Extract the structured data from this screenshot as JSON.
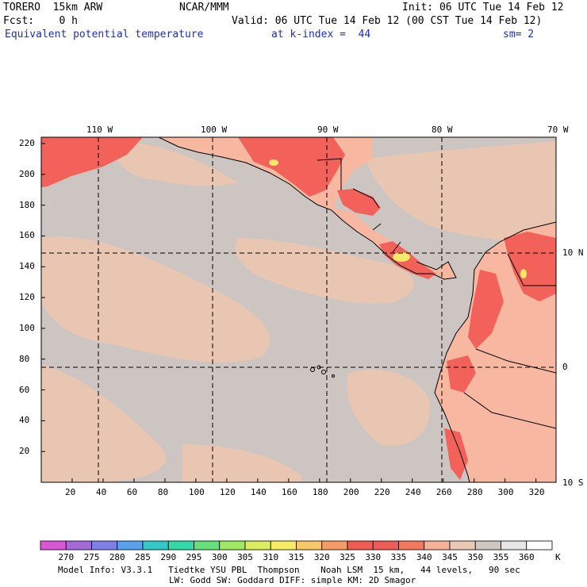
{
  "header": {
    "model": "TORERO  15km ARW",
    "org": "NCAR/MMM",
    "init": "Init: 06 UTC Tue 14 Feb 12",
    "fcst": "Fcst:    0 h",
    "valid": "Valid: 06 UTC Tue 14 Feb 12 (00 CST Tue 14 Feb 12)",
    "field": "Equivalent potential temperature",
    "level": "at k-index =  44",
    "smooth": "sm= 2"
  },
  "axes": {
    "top": [
      "110 W",
      "100 W",
      "90 W",
      "80 W",
      "70 W"
    ],
    "right": [
      "10 N",
      "0",
      "10 S"
    ],
    "left": [
      "220",
      "200",
      "180",
      "160",
      "140",
      "120",
      "100",
      "80",
      "60",
      "40",
      "20"
    ],
    "bottom": [
      "20",
      "40",
      "60",
      "80",
      "100",
      "120",
      "140",
      "160",
      "180",
      "200",
      "220",
      "240",
      "260",
      "280",
      "300",
      "320"
    ]
  },
  "colorbar": {
    "labels": [
      "270",
      "275",
      "280",
      "285",
      "290",
      "295",
      "300",
      "305",
      "310",
      "315",
      "320",
      "325",
      "330",
      "335",
      "340",
      "345",
      "350",
      "355",
      "360"
    ],
    "unit": "K",
    "colors": [
      "#d957d6",
      "#a56ad9",
      "#7f7fe8",
      "#5aa0ee",
      "#33c9c9",
      "#33d9a6",
      "#66e07a",
      "#a0e860",
      "#d8ee5a",
      "#f8ec62",
      "#f8c868",
      "#f89a66",
      "#f05c52",
      "#ef5b55",
      "#f3785f",
      "#f7b196",
      "#e9c9b5",
      "#cfc7c3",
      "#e6e6e6",
      "#ffffff"
    ]
  },
  "map": {
    "land_color": "#f7b7a0",
    "ocean_color": "#cdc5c1",
    "hot_color": "#f2625a",
    "peak_color": "#f6e86a"
  },
  "footer": {
    "line1": "Model Info: V3.3.1   Tiedtke YSU PBL  Thompson    Noah LSM  15 km,   44 levels,   90 sec",
    "line2": "LW: Godd SW: Goddard DIFF: simple KM: 2D Smagor"
  }
}
